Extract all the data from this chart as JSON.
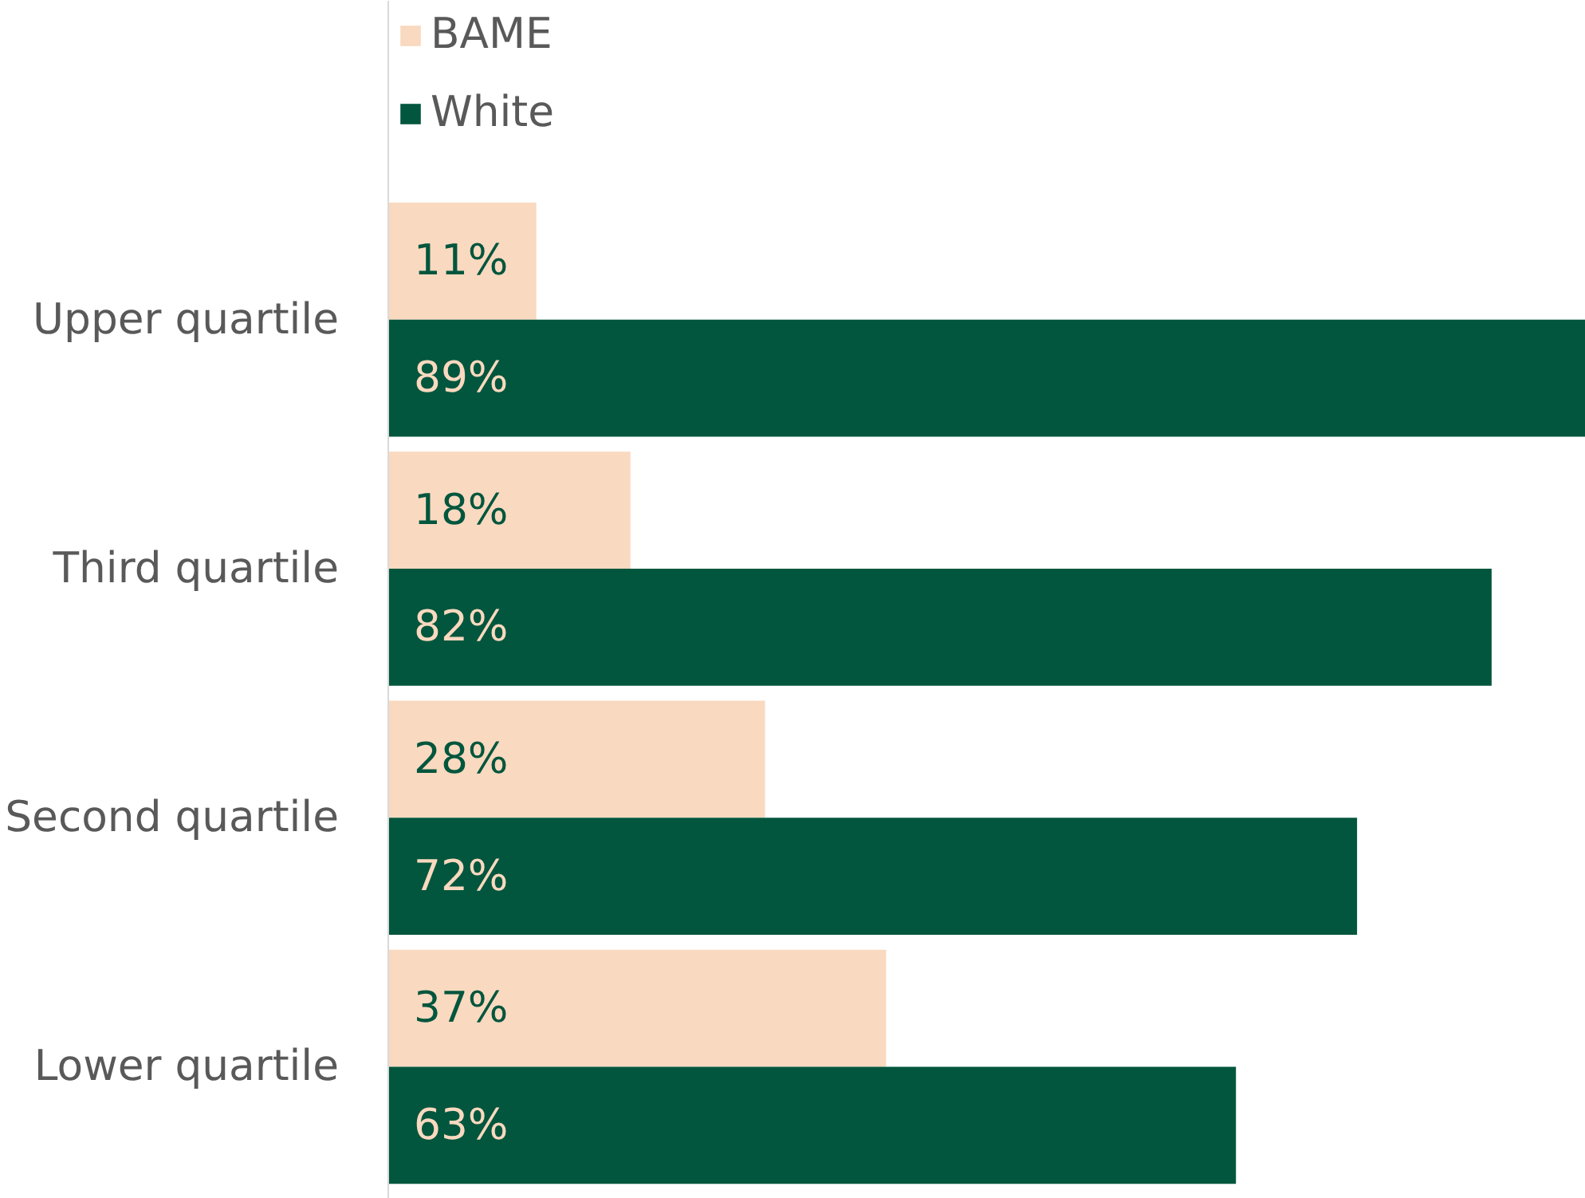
{
  "chart_data": {
    "type": "bar",
    "orientation": "horizontal",
    "categories": [
      "Upper quartile",
      "Third quartile",
      "Second quartile",
      "Lower quartile"
    ],
    "series": [
      {
        "name": "BAME",
        "color": "#f9d9bf",
        "values": [
          11,
          18,
          28,
          37
        ],
        "value_labels": [
          "11%",
          "18%",
          "28%",
          "37%"
        ]
      },
      {
        "name": "White",
        "color": "#02563d",
        "values": [
          89,
          82,
          72,
          63
        ],
        "value_labels": [
          "89%",
          "82%",
          "72%",
          "63%"
        ]
      }
    ],
    "legend": "top left",
    "grid": false
  }
}
